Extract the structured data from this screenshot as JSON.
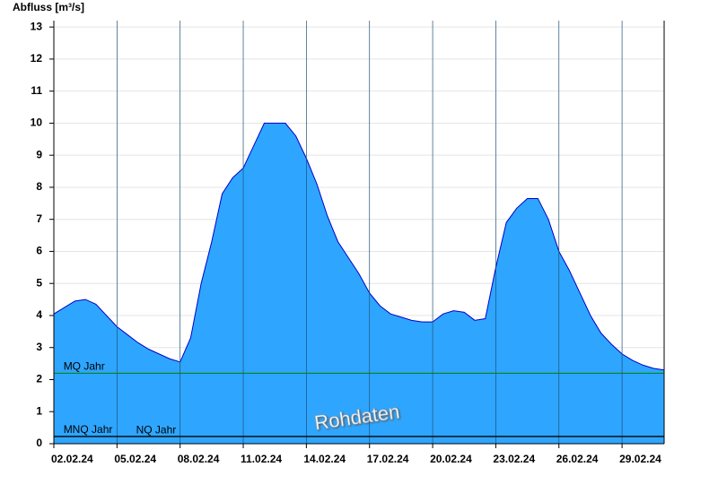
{
  "chart_data": {
    "type": "area",
    "y_label": "Abfluss [m³/s]",
    "watermark": "Rohdaten",
    "color": "#2ea6ff",
    "line_color": "#0000c8",
    "grid": true,
    "xlim": [
      0,
      29
    ],
    "ylim": [
      0,
      13.2
    ],
    "yticks": [
      0,
      1,
      2,
      3,
      4,
      5,
      6,
      7,
      8,
      9,
      10,
      11,
      12,
      13
    ],
    "xticks": [
      {
        "value": 0,
        "label": "02.02.24"
      },
      {
        "value": 3,
        "label": "05.02.24"
      },
      {
        "value": 6,
        "label": "08.02.24"
      },
      {
        "value": 9,
        "label": "11.02.24"
      },
      {
        "value": 12,
        "label": "14.02.24"
      },
      {
        "value": 15,
        "label": "17.02.24"
      },
      {
        "value": 18,
        "label": "20.02.24"
      },
      {
        "value": 21,
        "label": "23.02.24"
      },
      {
        "value": 24,
        "label": "26.02.24"
      },
      {
        "value": 27,
        "label": "29.02.24"
      }
    ],
    "x": [
      0,
      0.5,
      1,
      1.5,
      2,
      2.5,
      3,
      3.5,
      4,
      4.5,
      5,
      5.5,
      6,
      6.5,
      7,
      7.5,
      8,
      8.5,
      9,
      9.5,
      10,
      10.5,
      11,
      11.5,
      12,
      12.5,
      13,
      13.5,
      14,
      14.5,
      15,
      15.5,
      16,
      16.5,
      17,
      17.5,
      18,
      18.5,
      19,
      19.5,
      20,
      20.5,
      21,
      21.5,
      22,
      22.5,
      23,
      23.5,
      24,
      24.5,
      25,
      25.5,
      26,
      26.5,
      27,
      27.5,
      28,
      28.5,
      29
    ],
    "values": [
      4.05,
      4.25,
      4.45,
      4.5,
      4.35,
      4.0,
      3.65,
      3.4,
      3.15,
      2.95,
      2.8,
      2.65,
      2.55,
      3.3,
      5.0,
      6.3,
      7.8,
      8.3,
      8.6,
      9.3,
      10.0,
      10.0,
      10.0,
      9.6,
      8.9,
      8.1,
      7.1,
      6.3,
      5.8,
      5.3,
      4.7,
      4.3,
      4.05,
      3.95,
      3.85,
      3.8,
      3.8,
      4.05,
      4.15,
      4.1,
      3.85,
      3.9,
      5.5,
      6.9,
      7.35,
      7.65,
      7.65,
      7.0,
      6.0,
      5.4,
      4.7,
      4.0,
      3.45,
      3.1,
      2.8,
      2.6,
      2.45,
      2.35,
      2.3
    ],
    "reference_lines": [
      {
        "label": "MQ Jahr",
        "value": 2.2,
        "color": "#008000",
        "label_x": 0.2
      },
      {
        "label": "MNQ Jahr",
        "value": 0.23,
        "color": "#000000",
        "label_x": 0.2
      },
      {
        "label": "NQ Jahr",
        "value": 0.22,
        "color": "#000000",
        "label_x": 3.65
      }
    ]
  }
}
